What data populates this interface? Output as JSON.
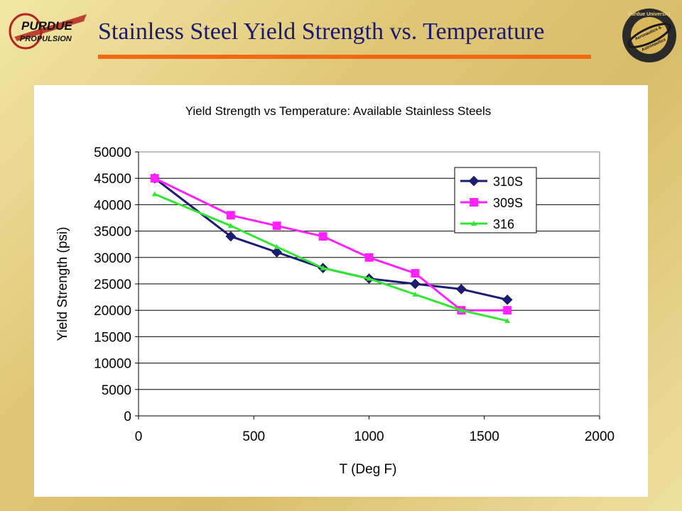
{
  "slide": {
    "title": "Stainless Steel Yield Strength vs. Temperature",
    "left_logo_text": [
      "PURDUE",
      "PROPULSION"
    ],
    "right_logo_text": [
      "Purdue University",
      "Aeronautics &",
      "Astronautics"
    ]
  },
  "colors": {
    "title_text": "#1a1a6e",
    "title_rule": "#ef6a12",
    "series_310S": "#1c1c78",
    "series_309S": "#ff22ff",
    "series_316": "#33e633"
  },
  "chart_data": {
    "type": "line",
    "title": "Yield Strength vs Temperature:  Available Stainless Steels",
    "xlabel": "T (Deg F)",
    "ylabel": "Yield Strength (psi)",
    "xlim": [
      0,
      2000
    ],
    "ylim": [
      0,
      50000
    ],
    "xticks": [
      0,
      500,
      1000,
      1500,
      2000
    ],
    "yticks": [
      0,
      5000,
      10000,
      15000,
      20000,
      25000,
      30000,
      35000,
      40000,
      45000,
      50000
    ],
    "grid": "horizontal",
    "legend_position": "top-right",
    "series": [
      {
        "name": "310S",
        "marker": "diamond",
        "points": [
          [
            70,
            45000
          ],
          [
            400,
            34000
          ],
          [
            600,
            31000
          ],
          [
            800,
            28000
          ],
          [
            1000,
            26000
          ],
          [
            1200,
            25000
          ],
          [
            1400,
            24000
          ],
          [
            1600,
            22000
          ]
        ]
      },
      {
        "name": "309S",
        "marker": "square",
        "points": [
          [
            70,
            45000
          ],
          [
            400,
            38000
          ],
          [
            600,
            36000
          ],
          [
            800,
            34000
          ],
          [
            1000,
            30000
          ],
          [
            1200,
            27000
          ],
          [
            1400,
            20000
          ],
          [
            1600,
            20000
          ]
        ]
      },
      {
        "name": "316",
        "marker": "triangle",
        "points": [
          [
            70,
            42000
          ],
          [
            400,
            36000
          ],
          [
            600,
            32000
          ],
          [
            800,
            28000
          ],
          [
            1000,
            26000
          ],
          [
            1200,
            23000
          ],
          [
            1400,
            20000
          ],
          [
            1600,
            18000
          ]
        ]
      }
    ]
  }
}
